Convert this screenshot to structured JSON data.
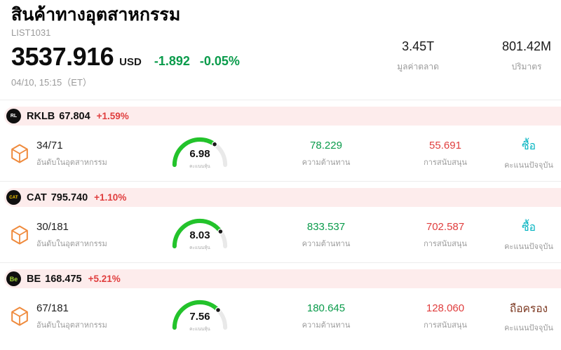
{
  "header": {
    "title": "สินค้าทางอุตสาหกรรม",
    "list_id": "LIST1031",
    "price": "3537.916",
    "currency": "USD",
    "change_value": "-1.892",
    "change_pct": "-0.05%",
    "change_color": "#0a9b4b",
    "datetime": "04/10, 15:15（ET）",
    "metrics": [
      {
        "value": "3.45T",
        "label": "มูลค่าตลาด"
      },
      {
        "value": "801.42M",
        "label": "ปริมาตร"
      }
    ]
  },
  "labels": {
    "industry_rank": "อันดับในอุตสาหกรรม",
    "stock_score": "คะแนนหุ้น",
    "resistance": "ความต้านทาน",
    "support": "การสนับสนุน",
    "current_rating": "คะแนนปัจจุบัน"
  },
  "colors": {
    "up_red": "#e03e3e",
    "down_green": "#0a9b4b",
    "buy_teal": "#00b3c0",
    "hold_brown": "#7d3a23",
    "gauge_green": "#23c32b",
    "pill_bg": "#fdecec"
  },
  "stocks": [
    {
      "ticker": "RKLB",
      "logo_text": "RL",
      "price": "67.804",
      "change": "+1.59%",
      "rank": "34/71",
      "score": 6.98,
      "score_text": "6.98",
      "resistance": "78.229",
      "support": "55.691",
      "rating": "ซื้อ",
      "rating_color": "#00b3c0"
    },
    {
      "ticker": "CAT",
      "logo_text": "CAT",
      "price": "795.740",
      "change": "+1.10%",
      "rank": "30/181",
      "score": 8.03,
      "score_text": "8.03",
      "resistance": "833.537",
      "support": "702.587",
      "rating": "ซื้อ",
      "rating_color": "#00b3c0"
    },
    {
      "ticker": "BE",
      "logo_text": "Be",
      "price": "168.475",
      "change": "+5.21%",
      "rank": "67/181",
      "score": 7.56,
      "score_text": "7.56",
      "resistance": "180.645",
      "support": "128.060",
      "rating": "ถือครอง",
      "rating_color": "#7d3a23"
    }
  ]
}
